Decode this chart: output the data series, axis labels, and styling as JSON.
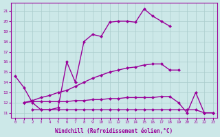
{
  "xlabel": "Windchill (Refroidissement éolien,°C)",
  "bg_color": "#cce8e8",
  "grid_color": "#aacccc",
  "line_color": "#990099",
  "x_ticks": [
    0,
    1,
    2,
    3,
    4,
    5,
    6,
    7,
    8,
    9,
    10,
    11,
    12,
    13,
    14,
    15,
    16,
    17,
    18,
    19,
    20,
    21,
    22,
    23
  ],
  "y_ticks": [
    11,
    12,
    13,
    14,
    15,
    16,
    17,
    18,
    19,
    20,
    21
  ],
  "ylim": [
    10.5,
    21.8
  ],
  "xlim": [
    -0.5,
    23.5
  ],
  "curve1": {
    "x": [
      0,
      1,
      2,
      3,
      4,
      5,
      6,
      7,
      8,
      9,
      10,
      11,
      12,
      13,
      14,
      15,
      16,
      17,
      18
    ],
    "y": [
      14.6,
      13.5,
      12.0,
      11.3,
      11.3,
      11.5,
      16.0,
      14.0,
      18.0,
      18.7,
      18.5,
      19.9,
      20.0,
      20.0,
      19.9,
      21.2,
      20.5,
      20.0,
      19.5
    ]
  },
  "curve2": {
    "x": [
      1,
      2,
      3,
      4,
      5,
      6,
      7,
      8,
      9,
      10,
      11,
      12,
      13,
      14,
      15,
      16,
      17,
      18,
      19
    ],
    "y": [
      12.0,
      12.2,
      12.5,
      12.7,
      13.0,
      13.2,
      13.6,
      14.0,
      14.4,
      14.7,
      15.0,
      15.2,
      15.4,
      15.5,
      15.7,
      15.8,
      15.8,
      15.2,
      15.2
    ]
  },
  "curve3": {
    "x": [
      1,
      2,
      3,
      4,
      5,
      6,
      7,
      8,
      9,
      10,
      11,
      12,
      13,
      14,
      15,
      16,
      17,
      18,
      19,
      20,
      21,
      22,
      23
    ],
    "y": [
      12.0,
      12.1,
      12.1,
      12.1,
      12.1,
      12.1,
      12.2,
      12.2,
      12.3,
      12.3,
      12.4,
      12.4,
      12.5,
      12.5,
      12.5,
      12.5,
      12.6,
      12.6,
      12.0,
      11.0,
      13.0,
      11.0,
      11.0
    ]
  },
  "curve4": {
    "x": [
      2,
      3,
      4,
      5,
      6,
      7,
      8,
      9,
      10,
      11,
      12,
      13,
      14,
      15,
      16,
      17,
      18,
      19,
      20,
      21,
      22,
      23
    ],
    "y": [
      11.3,
      11.3,
      11.3,
      11.3,
      11.3,
      11.3,
      11.3,
      11.3,
      11.3,
      11.3,
      11.3,
      11.3,
      11.3,
      11.3,
      11.3,
      11.3,
      11.3,
      11.3,
      11.3,
      11.3,
      11.0,
      11.0
    ]
  }
}
